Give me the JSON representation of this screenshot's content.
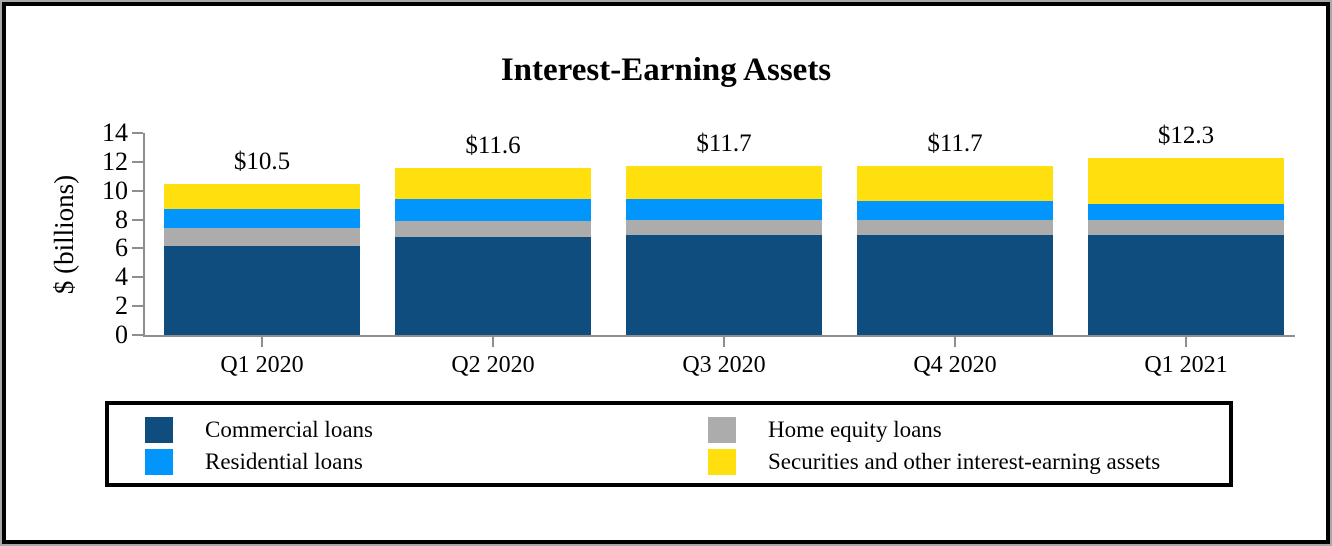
{
  "chart_data": {
    "type": "bar",
    "stacked": true,
    "title": "Interest-Earning Assets",
    "ylabel": "$ (billions)",
    "ylim": [
      0,
      14
    ],
    "ytick_labels": [
      "0",
      "2",
      "4",
      "6",
      "8",
      "10",
      "12",
      "14"
    ],
    "grid": false,
    "legend_position": "bottom",
    "categories": [
      "Q1 2020",
      "Q2 2020",
      "Q3 2020",
      "Q4 2020",
      "Q1 2021"
    ],
    "totals_labels": [
      "$10.5",
      "$11.6",
      "$11.7",
      "$11.7",
      "$12.3"
    ],
    "series": [
      {
        "name": "Commercial loans",
        "color": "#0F4D7E",
        "values": [
          6.2,
          6.8,
          6.9,
          6.9,
          6.9
        ]
      },
      {
        "name": "Home equity loans",
        "color": "#ACACAC",
        "values": [
          1.2,
          1.1,
          1.1,
          1.1,
          1.1
        ]
      },
      {
        "name": "Residential loans",
        "color": "#0295FB",
        "values": [
          1.3,
          1.5,
          1.4,
          1.3,
          1.1
        ]
      },
      {
        "name": "Securities and other interest-earning assets",
        "color": "#FFDF0E",
        "values": [
          1.8,
          2.2,
          2.3,
          2.4,
          3.2
        ]
      }
    ]
  },
  "legend": {
    "items": [
      {
        "label": "Commercial loans",
        "color": "#0F4D7E"
      },
      {
        "label": "Residential loans",
        "color": "#0295FB"
      },
      {
        "label": "Home equity loans",
        "color": "#ACACAC"
      },
      {
        "label": "Securities and other interest-earning assets",
        "color": "#FFDF0E"
      }
    ]
  },
  "colors": {
    "axis": "#8E8E8E",
    "text": "#000000",
    "background": "#FFFFFF",
    "frame_border": "#000000"
  }
}
